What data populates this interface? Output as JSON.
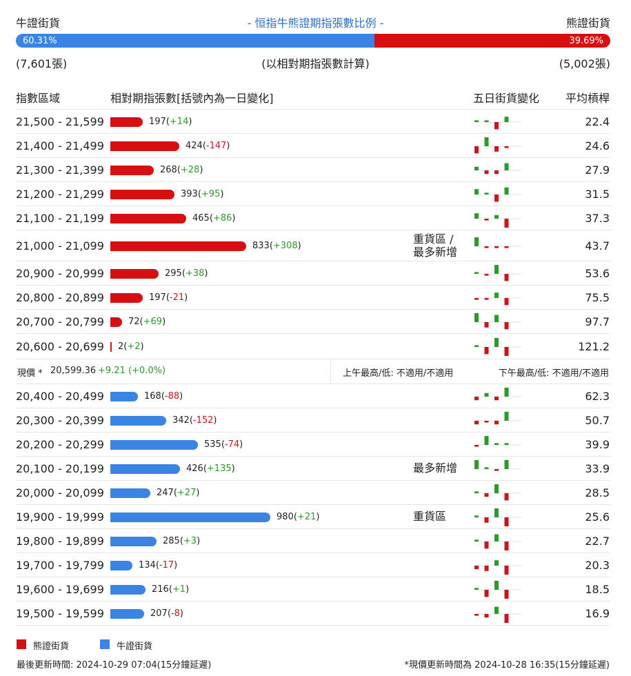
{
  "header": {
    "bull_label": "牛證街貨",
    "bear_label": "熊證街貨",
    "title": "- 恒指牛熊證期指張數比例 -",
    "bull_pct": "60.31%",
    "bear_pct": "39.69%",
    "bull_ratio": 0.6031,
    "bull_count": "(7,601張)",
    "bear_count": "(5,002張)",
    "basis_note": "(以相對期指張數計算)"
  },
  "columns": {
    "range": "指數區域",
    "contracts": "相對期指張數[括號內為一日變化]",
    "five_day": "五日街貨變化",
    "avg_ratio": "平均槓桿"
  },
  "colors": {
    "bear": "#d50f12",
    "bull": "#3a85e3",
    "pos": "#2a9a2a",
    "neg": "#c8161d"
  },
  "bear_rows": [
    {
      "range": "21,500 - 21,599",
      "value": 197,
      "value_text": "197",
      "change": "+14",
      "note": "",
      "avg": "22.4",
      "spark": [
        1,
        1,
        -4,
        3,
        0
      ]
    },
    {
      "range": "21,400 - 21,499",
      "value": 424,
      "value_text": "424",
      "change": "-147",
      "note": "",
      "avg": "24.6",
      "spark": [
        -4,
        5,
        -3,
        -1,
        0
      ]
    },
    {
      "range": "21,300 - 21,399",
      "value": 268,
      "value_text": "268",
      "change": "+28",
      "note": "",
      "avg": "27.9",
      "spark": [
        2,
        -2,
        -2,
        4,
        0
      ]
    },
    {
      "range": "21,200 - 21,299",
      "value": 393,
      "value_text": "393",
      "change": "+95",
      "note": "",
      "avg": "31.5",
      "spark": [
        3,
        1,
        -4,
        4,
        0
      ]
    },
    {
      "range": "21,100 - 21,199",
      "value": 465,
      "value_text": "465",
      "change": "+86",
      "note": "",
      "avg": "37.3",
      "spark": [
        3,
        -1,
        2,
        -5,
        0
      ]
    },
    {
      "range": "21,000 - 21,099",
      "value": 833,
      "value_text": "833",
      "change": "+308",
      "note": "重貨區 / 最多新增",
      "avg": "43.7",
      "spark": [
        5,
        -1,
        -1,
        -1,
        0
      ]
    },
    {
      "range": "20,900 - 20,999",
      "value": 295,
      "value_text": "295",
      "change": "+38",
      "note": "",
      "avg": "53.6",
      "spark": [
        1,
        -1,
        5,
        -4,
        0
      ]
    },
    {
      "range": "20,800 - 20,899",
      "value": 197,
      "value_text": "197",
      "change": "-21",
      "note": "",
      "avg": "75.5",
      "spark": [
        -1,
        -1,
        3,
        -4,
        0
      ]
    },
    {
      "range": "20,700 - 20,799",
      "value": 72,
      "value_text": "72",
      "change": "+69",
      "note": "",
      "avg": "97.7",
      "spark": [
        5,
        -3,
        4,
        -4,
        0
      ]
    },
    {
      "range": "20,600 - 20,699",
      "value": 2,
      "value_text": "2",
      "change": "+2",
      "note": "",
      "avg": "121.2",
      "spark": [
        1,
        -4,
        5,
        -5,
        0
      ]
    }
  ],
  "current": {
    "label": "現價 *",
    "price": "20,599.36",
    "change": "+9.21 (+0.0%)",
    "am": "上午最高/低: 不適用/不適用",
    "pm": "下午最高/低: 不適用/不適用"
  },
  "bull_rows": [
    {
      "range": "20,400 - 20,499",
      "value": 168,
      "value_text": "168",
      "change": "-88",
      "note": "",
      "avg": "62.3",
      "spark": [
        -2,
        2,
        -2,
        5,
        0
      ]
    },
    {
      "range": "20,300 - 20,399",
      "value": 342,
      "value_text": "342",
      "change": "-152",
      "note": "",
      "avg": "50.7",
      "spark": [
        -2,
        -1,
        -2,
        5,
        0
      ]
    },
    {
      "range": "20,200 - 20,299",
      "value": 535,
      "value_text": "535",
      "change": "-74",
      "note": "",
      "avg": "39.9",
      "spark": [
        -1,
        5,
        1,
        1,
        0
      ]
    },
    {
      "range": "20,100 - 20,199",
      "value": 426,
      "value_text": "426",
      "change": "+135",
      "note": "最多新增",
      "avg": "33.9",
      "spark": [
        5,
        1,
        -1,
        5,
        0
      ]
    },
    {
      "range": "20,000 - 20,099",
      "value": 247,
      "value_text": "247",
      "change": "+27",
      "note": "",
      "avg": "28.5",
      "spark": [
        1,
        -2,
        5,
        -4,
        0
      ]
    },
    {
      "range": "19,900 - 19,999",
      "value": 980,
      "value_text": "980",
      "change": "+21",
      "note": "重貨區",
      "avg": "25.6",
      "spark": [
        1,
        -3,
        5,
        -5,
        0
      ]
    },
    {
      "range": "19,800 - 19,899",
      "value": 285,
      "value_text": "285",
      "change": "+3",
      "note": "",
      "avg": "22.7",
      "spark": [
        1,
        -4,
        4,
        -5,
        0
      ]
    },
    {
      "range": "19,700 - 19,799",
      "value": 134,
      "value_text": "134",
      "change": "-17",
      "note": "",
      "avg": "20.3",
      "spark": [
        -2,
        -3,
        3,
        -5,
        0
      ]
    },
    {
      "range": "19,600 - 19,699",
      "value": 216,
      "value_text": "216",
      "change": "+1",
      "note": "",
      "avg": "18.5",
      "spark": [
        1,
        -4,
        5,
        -5,
        0
      ]
    },
    {
      "range": "19,500 - 19,599",
      "value": 207,
      "value_text": "207",
      "change": "-8",
      "note": "",
      "avg": "16.9",
      "spark": [
        -1,
        -2,
        4,
        -5,
        0
      ]
    }
  ],
  "legend": {
    "bear": "熊證街貨",
    "bull": "牛證街貨"
  },
  "footer": {
    "updated": "最後更新時間: 2024-10-29 07:04(15分鐘延遲)",
    "price_updated": "*現價更新時間為 2024-10-28 16:35(15分鐘延遲)"
  }
}
